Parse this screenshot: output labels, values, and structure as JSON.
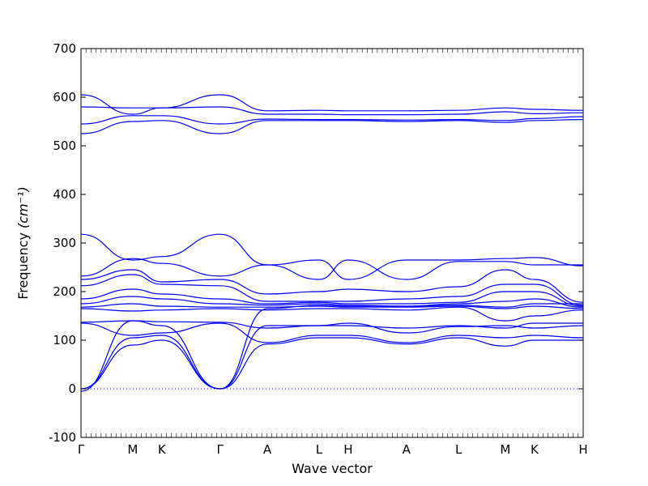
{
  "chart_data": {
    "type": "line",
    "title": "",
    "xlabel": "Wave vector",
    "ylabel_text": "Frequency ",
    "ylabel_unit": "(cm⁻¹)",
    "ylim": [
      -100,
      700
    ],
    "yticks": [
      -100,
      0,
      100,
      200,
      300,
      400,
      500,
      600,
      700
    ],
    "xlim": [
      0,
      1
    ],
    "high_symmetry_points": [
      {
        "label": "Γ",
        "x": 0.0
      },
      {
        "label": "M",
        "x": 0.103
      },
      {
        "label": "K",
        "x": 0.161
      },
      {
        "label": "Γ",
        "x": 0.277
      },
      {
        "label": "A",
        "x": 0.371
      },
      {
        "label": "L",
        "x": 0.474
      },
      {
        "label": "H",
        "x": 0.532
      },
      {
        "label": "A",
        "x": 0.648
      },
      {
        "label": "L",
        "x": 0.752
      },
      {
        "label": "M",
        "x": 0.845
      },
      {
        "label": "K",
        "x": 0.903
      },
      {
        "label": "H",
        "x": 1.0
      }
    ],
    "zero_line": true,
    "series": [
      {
        "x": [
          0,
          0.103,
          0.161,
          0.277,
          0.371,
          0.474,
          0.532,
          0.648,
          0.752,
          0.845,
          0.903,
          1.0
        ],
        "values": [
          605,
          565,
          578,
          605,
          572,
          573,
          572,
          572,
          573,
          578,
          575,
          573
        ]
      },
      {
        "x": [
          0,
          0.103,
          0.161,
          0.277,
          0.371,
          0.474,
          0.532,
          0.648,
          0.752,
          0.845,
          0.903,
          1.0
        ],
        "values": [
          580,
          578,
          578,
          580,
          565,
          565,
          564,
          564,
          565,
          570,
          566,
          568
        ]
      },
      {
        "x": [
          0,
          0.103,
          0.161,
          0.277,
          0.371,
          0.474,
          0.532,
          0.648,
          0.752,
          0.845,
          0.903,
          1.0
        ],
        "values": [
          545,
          562,
          562,
          545,
          555,
          554,
          554,
          553,
          554,
          552,
          556,
          560
        ]
      },
      {
        "x": [
          0,
          0.103,
          0.161,
          0.277,
          0.371,
          0.474,
          0.532,
          0.648,
          0.752,
          0.845,
          0.903,
          1.0
        ],
        "values": [
          525,
          550,
          552,
          525,
          552,
          552,
          552,
          550,
          552,
          548,
          552,
          554
        ]
      },
      {
        "x": [
          0,
          0.103,
          0.161,
          0.277,
          0.371,
          0.474,
          0.532,
          0.648,
          0.752,
          0.845,
          0.903,
          1.0
        ],
        "values": [
          318,
          265,
          272,
          318,
          255,
          265,
          225,
          265,
          265,
          268,
          270,
          253
        ]
      },
      {
        "x": [
          0,
          0.103,
          0.161,
          0.277,
          0.371,
          0.474,
          0.532,
          0.648,
          0.752,
          0.845,
          0.903,
          1.0
        ],
        "values": [
          232,
          268,
          258,
          232,
          255,
          225,
          265,
          225,
          262,
          262,
          255,
          255
        ]
      },
      {
        "x": [
          0,
          0.103,
          0.161,
          0.277,
          0.371,
          0.474,
          0.532,
          0.648,
          0.752,
          0.845,
          0.903,
          1.0
        ],
        "values": [
          225,
          245,
          220,
          225,
          195,
          200,
          205,
          200,
          210,
          245,
          225,
          178
        ]
      },
      {
        "x": [
          0,
          0.103,
          0.161,
          0.277,
          0.371,
          0.474,
          0.532,
          0.648,
          0.752,
          0.845,
          0.903,
          1.0
        ],
        "values": [
          212,
          235,
          215,
          212,
          180,
          180,
          180,
          185,
          190,
          215,
          215,
          172
        ]
      },
      {
        "x": [
          0,
          0.103,
          0.161,
          0.277,
          0.371,
          0.474,
          0.532,
          0.648,
          0.752,
          0.845,
          0.903,
          1.0
        ],
        "values": [
          185,
          205,
          195,
          185,
          175,
          178,
          175,
          175,
          178,
          200,
          200,
          170
        ]
      },
      {
        "x": [
          0,
          0.103,
          0.161,
          0.277,
          0.371,
          0.474,
          0.532,
          0.648,
          0.752,
          0.845,
          0.903,
          1.0
        ],
        "values": [
          175,
          190,
          185,
          175,
          172,
          175,
          172,
          170,
          175,
          180,
          185,
          168
        ]
      },
      {
        "x": [
          0,
          0.103,
          0.161,
          0.277,
          0.371,
          0.474,
          0.532,
          0.648,
          0.752,
          0.845,
          0.903,
          1.0
        ],
        "values": [
          168,
          175,
          170,
          168,
          168,
          170,
          168,
          168,
          170,
          165,
          170,
          165
        ]
      },
      {
        "x": [
          0,
          0.103,
          0.161,
          0.277,
          0.371,
          0.474,
          0.532,
          0.648,
          0.752,
          0.845,
          0.903,
          1.0
        ],
        "values": [
          165,
          160,
          162,
          165,
          162,
          165,
          165,
          162,
          168,
          140,
          150,
          162
        ]
      },
      {
        "x": [
          0,
          0.103,
          0.161,
          0.277,
          0.371,
          0.474,
          0.532,
          0.648,
          0.752,
          0.845,
          0.903,
          1.0
        ],
        "values": [
          137,
          140,
          138,
          137,
          125,
          130,
          130,
          125,
          130,
          125,
          135,
          135
        ]
      },
      {
        "x": [
          0,
          0.103,
          0.161,
          0.277,
          0.371,
          0.474,
          0.532,
          0.648,
          0.752,
          0.845,
          0.903,
          1.0
        ],
        "values": [
          135,
          110,
          115,
          135,
          95,
          110,
          110,
          95,
          110,
          105,
          110,
          105
        ]
      },
      {
        "x": [
          0,
          0.103,
          0.161,
          0.277,
          0.371,
          0.474,
          0.532,
          0.648,
          0.752,
          0.845,
          0.903,
          1.0
        ],
        "values": [
          0,
          105,
          110,
          0,
          92,
          105,
          105,
          92,
          105,
          88,
          100,
          100
        ]
      },
      {
        "x": [
          0,
          0.103,
          0.161,
          0.277,
          0.371,
          0.474,
          0.532,
          0.648,
          0.752,
          0.845,
          0.903,
          1.0
        ],
        "values": [
          0,
          90,
          100,
          0,
          165,
          172,
          170,
          170,
          172,
          168,
          175,
          175
        ]
      },
      {
        "x": [
          0,
          0.103,
          0.161,
          0.277,
          0.371,
          0.474,
          0.532,
          0.648,
          0.752,
          0.845,
          0.903,
          1.0
        ],
        "values": [
          -5,
          140,
          130,
          0,
          130,
          130,
          135,
          115,
          128,
          130,
          125,
          130
        ]
      }
    ]
  }
}
